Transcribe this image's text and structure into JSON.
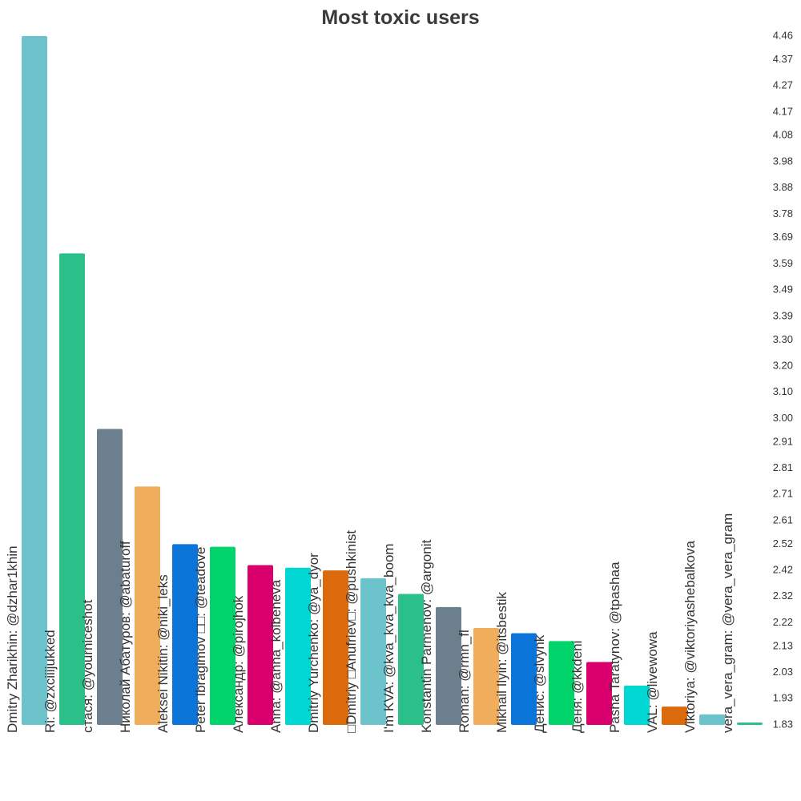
{
  "chart_data": {
    "type": "bar",
    "title": "Most toxic users",
    "categories": [
      "Dmitry Zharikhin: @dzhar1khin",
      "Ri: @zxciiijukked",
      "стася: @yourniceshot",
      "Николай Абатуров: @abaturoff",
      "Aleksei Nikitin: @niki_leks",
      "Peter Ibragimov □□: @teadove",
      "Александр: @pirojhok",
      "Anna: @anna_kolbeneva",
      "Dmitriy Yurchenko: @ya_dyor",
      "□Dmitriy □Anufriev□: @pushkinist",
      "I'm KVA: @kva_kva_kva_boom",
      "Konstantin Parmenov: @argonit",
      "Roman: @rmn_fl",
      "Mikhail Ilyin: @itsbestik",
      "Денис: @slvynk",
      "Деня: @kkdeni",
      "Pasha Taratynov: @tpashaa",
      "VAL: @livewowa",
      "Viktoriya: @viktoriyashebalkova",
      "vera_vera_gram: @vera_vera_gram"
    ],
    "values": [
      4.46,
      3.63,
      2.96,
      2.74,
      2.52,
      2.51,
      2.44,
      2.43,
      2.42,
      2.39,
      2.33,
      2.28,
      2.2,
      2.18,
      2.15,
      2.07,
      1.98,
      1.9,
      1.87,
      1.83
    ],
    "colors": [
      "#6cc3cc",
      "#2bbf8a",
      "#6c7f8c",
      "#f0ad5c",
      "#0b74d8",
      "#00d46a",
      "#d9006e",
      "#00d6d2",
      "#db6a0c",
      "#6cc3cc",
      "#2bbf8a",
      "#6c7f8c",
      "#f0ad5c",
      "#0b74d8",
      "#00d46a",
      "#d9006e",
      "#00d6d2",
      "#db6a0c",
      "#6cc3cc",
      "#2bbf8a"
    ],
    "ylim": [
      1.83,
      4.46
    ],
    "yticks": [
      4.46,
      4.37,
      4.27,
      4.17,
      4.08,
      3.98,
      3.88,
      3.78,
      3.69,
      3.59,
      3.49,
      3.39,
      {
        "value": 3.3,
        "label": "3.30"
      },
      {
        "value": 3.2,
        "label": "3.20"
      },
      {
        "value": 3.1,
        "label": "3.10"
      },
      {
        "value": 3,
        "label": "3.00"
      },
      2.91,
      2.81,
      2.71,
      2.61,
      2.52,
      2.42,
      2.32,
      2.22,
      2.13,
      2.03,
      1.93,
      1.83
    ],
    "y_axis_side": "right",
    "grid": false
  }
}
